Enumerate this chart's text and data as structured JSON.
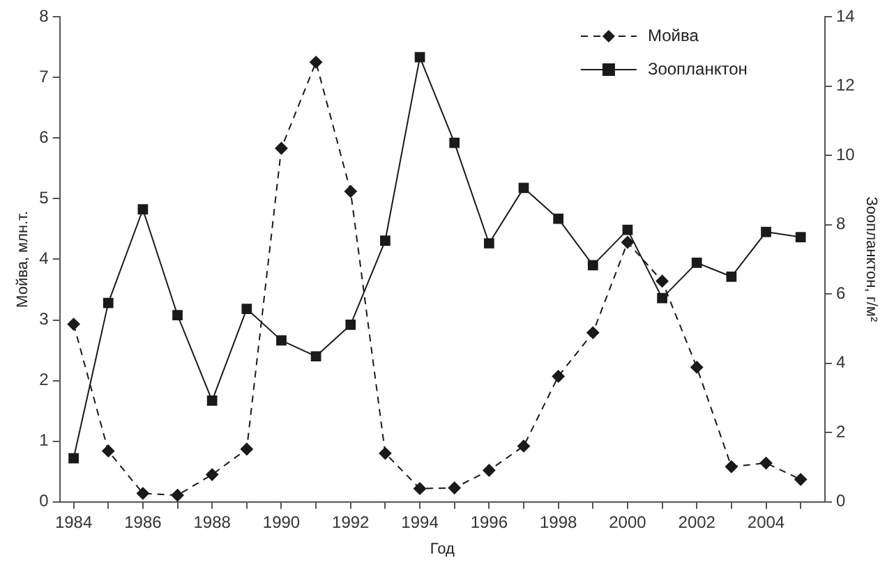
{
  "chart_data": {
    "type": "line",
    "xlabel": "Год",
    "ylabel": "Мойва, млн.т.",
    "y2label": "Зоопланктон, г/м²",
    "x": [
      1984,
      1985,
      1986,
      1987,
      1988,
      1989,
      1990,
      1991,
      1992,
      1993,
      1994,
      1995,
      1996,
      1997,
      1998,
      1999,
      2000,
      2001,
      2002,
      2003,
      2004,
      2005
    ],
    "series": [
      {
        "name": "Мойва",
        "color": "#1a1a1a",
        "marker": "diamond",
        "line_style": "dashed",
        "values": [
          2.93,
          0.84,
          0.14,
          0.11,
          0.45,
          0.87,
          5.83,
          7.25,
          5.12,
          0.8,
          0.22,
          0.23,
          0.52,
          0.92,
          2.07,
          2.79,
          4.28,
          3.64,
          2.22,
          0.58,
          0.64,
          0.37
        ]
      },
      {
        "name": "Зоопланктон",
        "color": "#1a1a1a",
        "marker": "square",
        "line_style": "solid",
        "axis": "y2",
        "values": [
          1.26,
          5.74,
          8.44,
          5.39,
          2.92,
          5.57,
          4.66,
          4.2,
          5.11,
          7.54,
          12.83,
          10.36,
          7.46,
          9.06,
          8.17,
          6.83,
          7.85,
          5.88,
          6.9,
          6.5,
          7.79,
          7.64
        ]
      }
    ],
    "xlim": [
      1983.6,
      2005.7
    ],
    "xticks": [
      1984,
      {
        "value": 1985,
        "label": null
      },
      1986,
      {
        "value": 1987,
        "label": null
      },
      1988,
      {
        "value": 1989,
        "label": null
      },
      1990,
      {
        "value": 1991,
        "label": null
      },
      1992,
      {
        "value": 1993,
        "label": null
      },
      1994,
      {
        "value": 1995,
        "label": null
      },
      1996,
      {
        "value": 1997,
        "label": null
      },
      1998,
      {
        "value": 1999,
        "label": null
      },
      2000,
      {
        "value": 2001,
        "label": null
      },
      2002,
      {
        "value": 2003,
        "label": null
      },
      2004,
      {
        "value": 2005,
        "label": null
      }
    ],
    "ylim": [
      0,
      8
    ],
    "yticks": [
      0,
      1,
      2,
      3,
      4,
      5,
      6,
      7,
      8
    ],
    "y2lim": [
      0,
      14
    ],
    "y2ticks": [
      0,
      2,
      4,
      6,
      8,
      10,
      12,
      14
    ],
    "grid": false,
    "legend": "top right"
  }
}
